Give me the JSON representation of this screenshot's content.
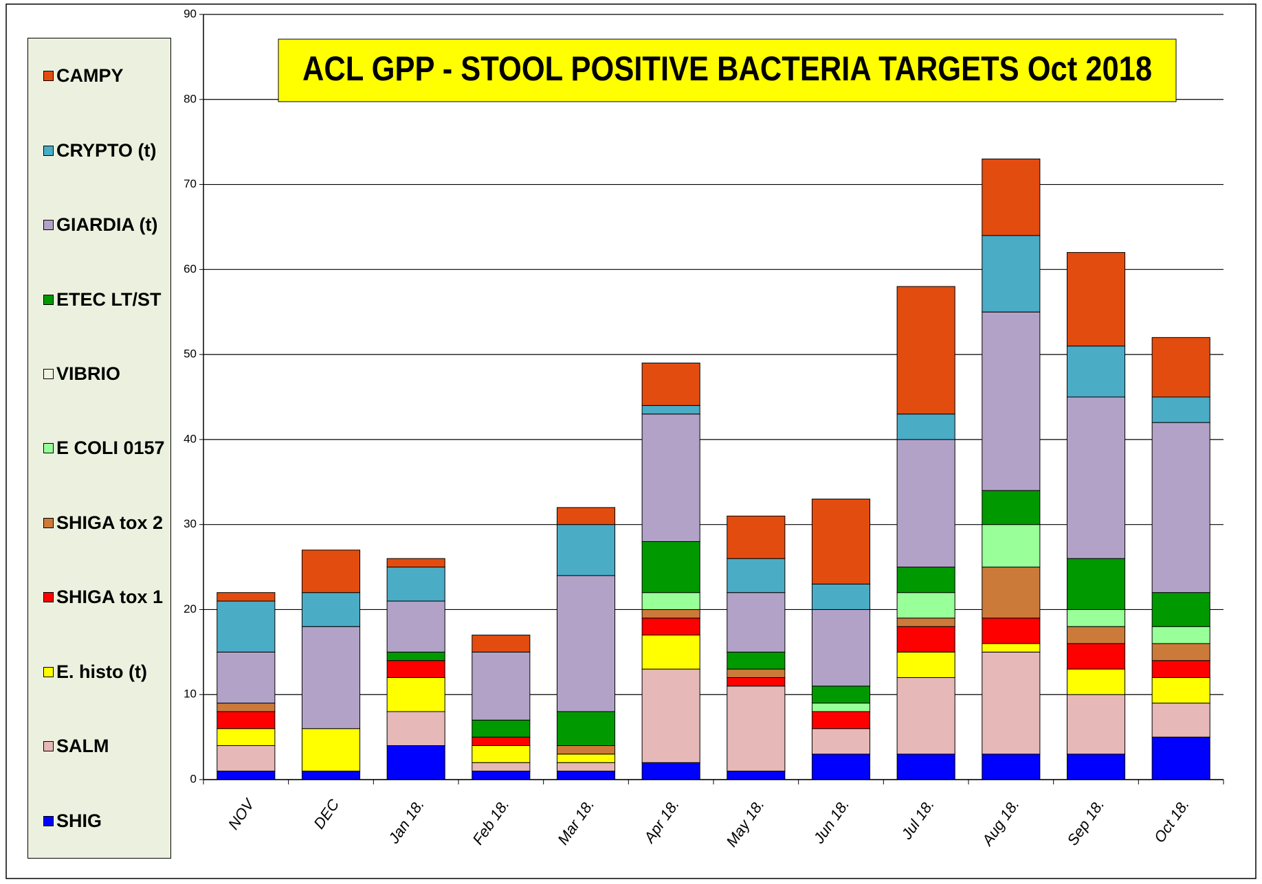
{
  "chart_data": {
    "type": "stacked-bar",
    "title": "ACL GPP - STOOL POSITIVE BACTERIA TARGETS Oct 2018",
    "categories": [
      "NOV",
      "DEC",
      "Jan 18.",
      "Feb 18.",
      "Mar 18.",
      "Apr 18.",
      "May 18.",
      "Jun 18.",
      "Jul 18.",
      "Aug 18.",
      "Sep 18.",
      "Oct 18."
    ],
    "series": [
      {
        "name": "SHIG",
        "color": "#0000ff",
        "values": [
          1,
          1,
          4,
          1,
          1,
          2,
          1,
          3,
          3,
          3,
          3,
          5
        ]
      },
      {
        "name": "SALM",
        "color": "#e6b8b7",
        "values": [
          3,
          0,
          4,
          1,
          1,
          11,
          10,
          3,
          9,
          12,
          7,
          4
        ]
      },
      {
        "name": "E. histo (t)",
        "color": "#ffff00",
        "values": [
          2,
          5,
          4,
          2,
          1,
          4,
          0,
          0,
          3,
          1,
          3,
          3
        ]
      },
      {
        "name": "SHIGA tox 1",
        "color": "#ff0000",
        "values": [
          2,
          0,
          2,
          1,
          0,
          2,
          1,
          2,
          3,
          3,
          3,
          2
        ]
      },
      {
        "name": "SHIGA tox 2",
        "color": "#cc7a3a",
        "values": [
          1,
          0,
          0,
          0,
          1,
          1,
          1,
          0,
          1,
          6,
          2,
          2
        ]
      },
      {
        "name": "E COLI 0157",
        "color": "#99ff99",
        "values": [
          0,
          0,
          0,
          0,
          0,
          2,
          0,
          1,
          3,
          5,
          2,
          2
        ]
      },
      {
        "name": "VIBRIO",
        "color": "#f2f2e0",
        "values": [
          0,
          0,
          0,
          0,
          0,
          0,
          0,
          0,
          0,
          0,
          0,
          0
        ]
      },
      {
        "name": "ETEC LT/ST",
        "color": "#009900",
        "values": [
          0,
          0,
          1,
          2,
          4,
          6,
          2,
          2,
          3,
          4,
          6,
          4
        ]
      },
      {
        "name": "GIARDIA (t)",
        "color": "#b3a2c7",
        "values": [
          6,
          12,
          6,
          8,
          16,
          15,
          7,
          9,
          15,
          21,
          19,
          20
        ]
      },
      {
        "name": "CRYPTO (t)",
        "color": "#4bacc6",
        "values": [
          6,
          4,
          4,
          0,
          6,
          1,
          4,
          3,
          3,
          9,
          6,
          3
        ]
      },
      {
        "name": "CAMPY",
        "color": "#e34c0f",
        "values": [
          1,
          5,
          1,
          2,
          2,
          5,
          5,
          10,
          15,
          9,
          11,
          7
        ]
      }
    ],
    "ylim": [
      0,
      90
    ],
    "yticks": [
      0,
      10,
      20,
      30,
      40,
      50,
      60,
      70,
      80,
      90
    ],
    "grid": true
  }
}
